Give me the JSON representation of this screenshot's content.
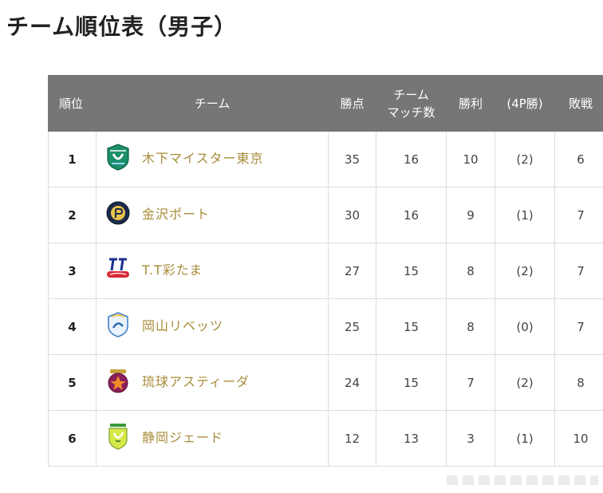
{
  "title": "チーム順位表（男子）",
  "headers": {
    "rank": "順位",
    "team": "チーム",
    "points": "勝点",
    "matches_line1": "チーム",
    "matches_line2": "マッチ数",
    "wins": "勝利",
    "wins_4p": "(4P勝)",
    "losses": "敗戦"
  },
  "colors": {
    "header_bg": "#767676",
    "team_name": "#a88c3a",
    "border": "#dcdcdc"
  },
  "rows": [
    {
      "rank": "1",
      "team": "木下マイスター東京",
      "logo_icon": "kinoshita-meister-logo-icon",
      "points": "35",
      "matches": "16",
      "wins": "10",
      "wins_4p": "(2)",
      "losses": "6"
    },
    {
      "rank": "2",
      "team": "金沢ポート",
      "logo_icon": "kanazawa-port-logo-icon",
      "points": "30",
      "matches": "16",
      "wins": "9",
      "wins_4p": "(1)",
      "losses": "7"
    },
    {
      "rank": "3",
      "team": "T.T彩たま",
      "logo_icon": "tt-saitama-logo-icon",
      "points": "27",
      "matches": "15",
      "wins": "8",
      "wins_4p": "(2)",
      "losses": "7"
    },
    {
      "rank": "4",
      "team": "岡山リベッツ",
      "logo_icon": "okayama-rivets-logo-icon",
      "points": "25",
      "matches": "15",
      "wins": "8",
      "wins_4p": "(0)",
      "losses": "7"
    },
    {
      "rank": "5",
      "team": "琉球アスティーダ",
      "logo_icon": "ryukyu-asteeda-logo-icon",
      "points": "24",
      "matches": "15",
      "wins": "7",
      "wins_4p": "(2)",
      "losses": "8"
    },
    {
      "rank": "6",
      "team": "静岡ジェード",
      "logo_icon": "shizuoka-jade-logo-icon",
      "points": "12",
      "matches": "13",
      "wins": "3",
      "wins_4p": "(1)",
      "losses": "10"
    }
  ]
}
